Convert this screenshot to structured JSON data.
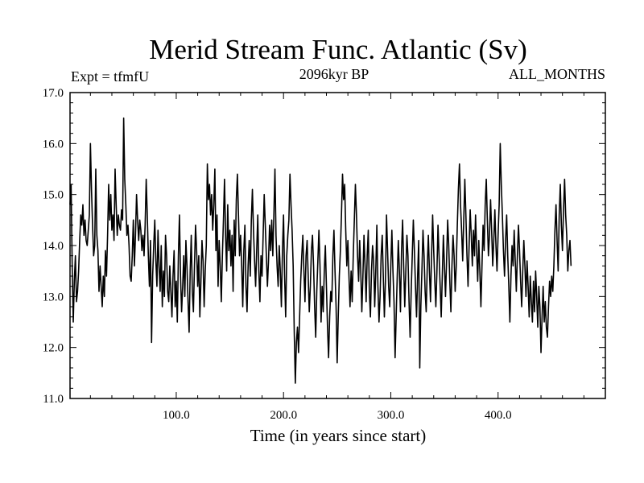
{
  "chart_data": {
    "type": "line",
    "title": "Merid Stream Func. Atlantic (Sv)",
    "subtitle_left": "Expt = tfmfU",
    "subtitle_center": "2096kyr BP",
    "subtitle_right": "ALL_MONTHS",
    "xlabel": "Time (in years since start)",
    "ylabel": "",
    "xlim": [
      1,
      500
    ],
    "ylim": [
      11.0,
      17.0
    ],
    "x_ticks": [
      100,
      200,
      300,
      400
    ],
    "x_tick_labels": [
      "100.0",
      "200.0",
      "300.0",
      "400.0"
    ],
    "y_ticks": [
      11,
      12,
      13,
      14,
      15,
      16,
      17
    ],
    "y_tick_labels": [
      "11.0",
      "12.0",
      "13.0",
      "14.0",
      "15.0",
      "16.0",
      "17.0"
    ],
    "grid": false,
    "series": [
      {
        "name": "Merid Stream Func. Atlantic",
        "x_start": 1,
        "x_step": 1,
        "values": [
          14.8,
          15.2,
          13.6,
          12.5,
          13.3,
          13.8,
          12.9,
          13.1,
          13.5,
          14.1,
          14.6,
          14.4,
          14.8,
          14.2,
          14.5,
          14.1,
          14.0,
          14.3,
          14.6,
          16.0,
          15.1,
          14.4,
          13.8,
          14.0,
          15.5,
          14.2,
          13.9,
          13.1,
          13.6,
          13.2,
          12.8,
          13.4,
          13.0,
          13.9,
          13.4,
          14.2,
          15.2,
          14.5,
          15.0,
          14.3,
          14.6,
          14.1,
          15.5,
          14.8,
          14.2,
          14.6,
          14.4,
          14.3,
          14.7,
          14.5,
          16.5,
          15.3,
          14.8,
          14.2,
          14.4,
          14.0,
          13.4,
          13.3,
          13.8,
          14.5,
          13.6,
          14.2,
          15.0,
          14.5,
          14.1,
          14.5,
          14.3,
          13.9,
          14.2,
          13.8,
          14.4,
          15.3,
          14.6,
          13.8,
          13.2,
          14.1,
          12.1,
          13.4,
          14.0,
          14.5,
          13.7,
          13.2,
          14.3,
          13.6,
          13.1,
          14.0,
          12.8,
          13.5,
          13.0,
          14.2,
          13.8,
          13.1,
          12.9,
          13.6,
          13.1,
          12.6,
          13.4,
          13.9,
          12.8,
          13.3,
          12.5,
          13.8,
          14.6,
          13.4,
          12.7,
          13.2,
          13.8,
          13.0,
          14.1,
          13.6,
          12.9,
          12.3,
          13.5,
          14.2,
          13.1,
          12.7,
          13.6,
          14.4,
          13.9,
          13.2,
          13.8,
          12.6,
          13.3,
          14.1,
          13.7,
          12.8,
          13.5,
          14.0,
          15.6,
          14.9,
          15.2,
          14.6,
          15.0,
          14.3,
          14.8,
          15.5,
          13.9,
          14.6,
          13.2,
          14.1,
          13.6,
          12.9,
          13.8,
          14.5,
          15.3,
          14.2,
          13.5,
          14.8,
          13.9,
          14.3,
          13.6,
          14.2,
          13.1,
          14.5,
          13.8,
          14.9,
          15.4,
          14.6,
          13.8,
          14.2,
          13.6,
          12.8,
          13.9,
          14.4,
          13.2,
          12.7,
          13.6,
          14.1,
          13.4,
          14.5,
          15.1,
          14.3,
          13.7,
          13.2,
          13.9,
          14.6,
          13.5,
          12.9,
          13.8,
          13.4,
          14.2,
          15.0,
          14.4,
          13.8,
          13.2,
          13.7,
          14.4,
          13.9,
          14.5,
          13.8,
          14.6,
          15.5,
          14.2,
          13.6,
          13.2,
          14.0,
          13.5,
          12.8,
          13.9,
          14.6,
          13.4,
          12.6,
          13.8,
          14.2,
          14.5,
          15.4,
          14.8,
          14.3,
          13.6,
          12.3,
          11.3,
          12.1,
          12.4,
          11.9,
          12.6,
          13.3,
          13.8,
          14.2,
          13.5,
          12.9,
          13.8,
          14.1,
          13.4,
          12.7,
          13.2,
          13.9,
          14.2,
          13.6,
          12.8,
          12.2,
          13.1,
          13.7,
          14.3,
          13.6,
          12.5,
          13.2,
          12.7,
          13.5,
          14.0,
          13.2,
          12.4,
          11.8,
          12.6,
          13.1,
          12.9,
          13.8,
          14.3,
          13.5,
          12.8,
          11.7,
          12.6,
          13.4,
          13.9,
          14.6,
          15.4,
          14.9,
          15.2,
          14.3,
          13.6,
          14.1,
          13.4,
          12.8,
          13.5,
          12.9,
          13.8,
          14.5,
          15.2,
          14.6,
          13.8,
          13.3,
          14.1,
          13.5,
          12.7,
          13.4,
          14.2,
          13.6,
          12.9,
          13.8,
          14.3,
          13.1,
          12.6,
          13.5,
          14.0,
          13.7,
          12.8,
          13.5,
          14.4,
          13.2,
          12.5,
          13.0,
          13.8,
          14.2,
          13.4,
          12.6,
          13.3,
          14.6,
          13.9,
          13.2,
          12.8,
          13.6,
          14.3,
          13.5,
          12.9,
          11.8,
          12.6,
          13.4,
          14.1,
          13.5,
          12.7,
          13.9,
          14.5,
          13.6,
          12.8,
          13.5,
          14.2,
          13.8,
          12.9,
          12.2,
          13.1,
          13.8,
          14.5,
          13.9,
          13.2,
          12.6,
          13.4,
          14.1,
          11.6,
          12.8,
          13.5,
          14.3,
          13.8,
          13.1,
          12.7,
          13.6,
          14.2,
          13.5,
          12.9,
          13.8,
          14.6,
          13.9,
          13.3,
          12.8,
          13.5,
          14.4,
          13.8,
          13.2,
          12.6,
          13.4,
          14.2,
          13.6,
          13.0,
          13.7,
          14.5,
          14.0,
          13.3,
          12.7,
          13.6,
          14.2,
          13.8,
          13.1,
          13.6,
          14.4,
          15.1,
          15.6,
          14.8,
          14.3,
          13.7,
          14.5,
          15.3,
          14.6,
          13.8,
          13.2,
          14.0,
          14.7,
          14.2,
          13.6,
          14.3,
          13.8,
          14.6,
          13.9,
          13.3,
          14.1,
          13.5,
          12.8,
          13.6,
          14.4,
          13.9,
          14.8,
          15.3,
          14.5,
          13.8,
          14.2,
          14.9,
          14.3,
          13.6,
          14.1,
          14.7,
          14.0,
          13.5,
          14.2,
          14.8,
          16.0,
          15.2,
          14.6,
          13.9,
          13.4,
          14.1,
          14.6,
          13.8,
          13.2,
          12.5,
          13.4,
          14.0,
          13.6,
          14.3,
          13.7,
          13.1,
          13.8,
          14.4,
          13.9,
          13.3,
          12.8,
          13.5,
          14.1,
          13.6,
          13.0,
          13.7,
          13.2,
          12.6,
          13.4,
          12.9,
          12.5,
          13.3,
          12.7,
          13.5,
          13.0,
          12.4,
          13.2,
          12.8,
          11.9,
          12.6,
          13.2,
          12.5,
          12.9,
          12.4,
          12.2,
          12.8,
          13.3,
          13.0,
          13.4,
          13.1,
          13.6,
          14.3,
          14.8,
          14.1,
          13.5,
          14.6,
          15.2,
          14.4,
          13.9,
          14.7,
          15.3,
          14.6,
          14.2,
          13.5,
          13.9,
          14.1,
          13.6
        ]
      }
    ]
  }
}
